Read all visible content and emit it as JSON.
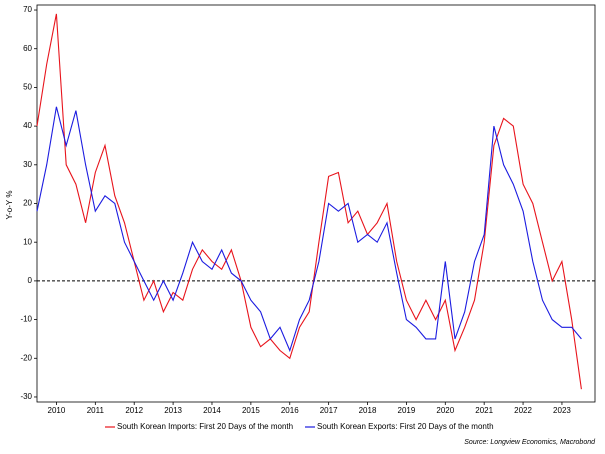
{
  "chart_data": {
    "type": "line",
    "y_label": "Y-o-Y %",
    "source": "Source: Longview Economics, Macrobond",
    "x": [
      2009.5,
      2009.75,
      2010,
      2010.25,
      2010.5,
      2010.75,
      2011,
      2011.25,
      2011.5,
      2011.75,
      2012,
      2012.25,
      2012.5,
      2012.75,
      2013,
      2013.25,
      2013.5,
      2013.75,
      2014,
      2014.25,
      2014.5,
      2014.75,
      2015,
      2015.25,
      2015.5,
      2015.75,
      2016,
      2016.25,
      2016.5,
      2016.75,
      2017,
      2017.25,
      2017.5,
      2017.75,
      2018,
      2018.25,
      2018.5,
      2018.75,
      2019,
      2019.25,
      2019.5,
      2019.75,
      2020,
      2020.25,
      2020.5,
      2020.75,
      2021,
      2021.25,
      2021.5,
      2021.75,
      2022,
      2022.25,
      2022.5,
      2022.75,
      2023,
      2023.25,
      2023.5
    ],
    "series": [
      {
        "name": "South Korean Imports: First 20 Days of the month",
        "color": "#e8141c",
        "values": [
          40,
          56,
          69,
          30,
          25,
          15,
          28,
          35,
          22,
          15,
          5,
          -5,
          0,
          -8,
          -3,
          -5,
          3,
          8,
          5,
          3,
          8,
          0,
          -12,
          -17,
          -15,
          -18,
          -20,
          -12,
          -8,
          10,
          27,
          28,
          15,
          18,
          12,
          15,
          20,
          5,
          -5,
          -10,
          -5,
          -10,
          -5,
          -18,
          -12,
          -5,
          10,
          35,
          42,
          40,
          25,
          20,
          10,
          0,
          5,
          -10,
          -28
        ]
      },
      {
        "name": "South Korean Exports: First 20 Days of the month",
        "color": "#1c1ce0",
        "values": [
          18,
          30,
          45,
          35,
          44,
          30,
          18,
          22,
          20,
          10,
          5,
          0,
          -5,
          0,
          -5,
          2,
          10,
          5,
          3,
          8,
          2,
          0,
          -5,
          -8,
          -15,
          -12,
          -18,
          -10,
          -5,
          5,
          20,
          18,
          20,
          10,
          12,
          10,
          15,
          2,
          -10,
          -12,
          -15,
          -15,
          5,
          -15,
          -8,
          5,
          12,
          40,
          30,
          25,
          18,
          5,
          -5,
          -10,
          -12,
          -12,
          -15
        ]
      }
    ],
    "xlim": [
      2009.5,
      2023.85
    ],
    "xticks": [
      2010,
      2011,
      2012,
      2013,
      2014,
      2015,
      2016,
      2017,
      2018,
      2019,
      2020,
      2021,
      2022,
      2023
    ],
    "ylim": [
      -31.3,
      71.3
    ],
    "yticks": [
      -30,
      -20,
      -10,
      0,
      10,
      20,
      30,
      40,
      50,
      60,
      70
    ],
    "reference_line": 0,
    "grid": false
  }
}
